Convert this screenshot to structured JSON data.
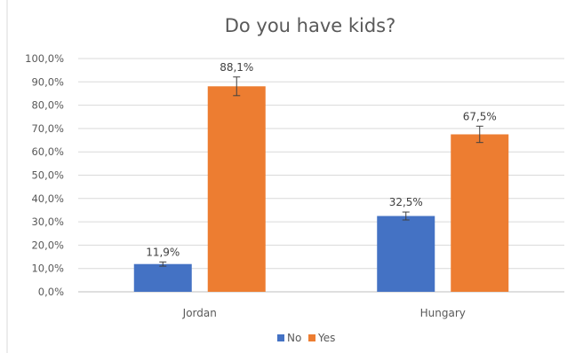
{
  "chart_data": {
    "type": "bar",
    "title": "Do you have kids?",
    "categories": [
      "Jordan",
      "Hungary"
    ],
    "series": [
      {
        "name": "No",
        "color": "#4472C4",
        "values": [
          11.9,
          32.5
        ],
        "labels": [
          "11,9%",
          "32,5%"
        ],
        "error": [
          0.9,
          1.7
        ]
      },
      {
        "name": "Yes",
        "color": "#ED7D31",
        "values": [
          88.1,
          67.5
        ],
        "labels": [
          "88,1%",
          "67,5%"
        ],
        "error": [
          4.0,
          3.5
        ]
      }
    ],
    "ylim": [
      0,
      100
    ],
    "yticks": [
      0,
      10,
      20,
      30,
      40,
      50,
      60,
      70,
      80,
      90,
      100
    ],
    "ytick_labels": [
      "0,0%",
      "10,0%",
      "20,0%",
      "30,0%",
      "40,0%",
      "50,0%",
      "60,0%",
      "70,0%",
      "80,0%",
      "90,0%",
      "100,0%"
    ],
    "grid": true,
    "legend": "bottom",
    "error_bars": true
  }
}
